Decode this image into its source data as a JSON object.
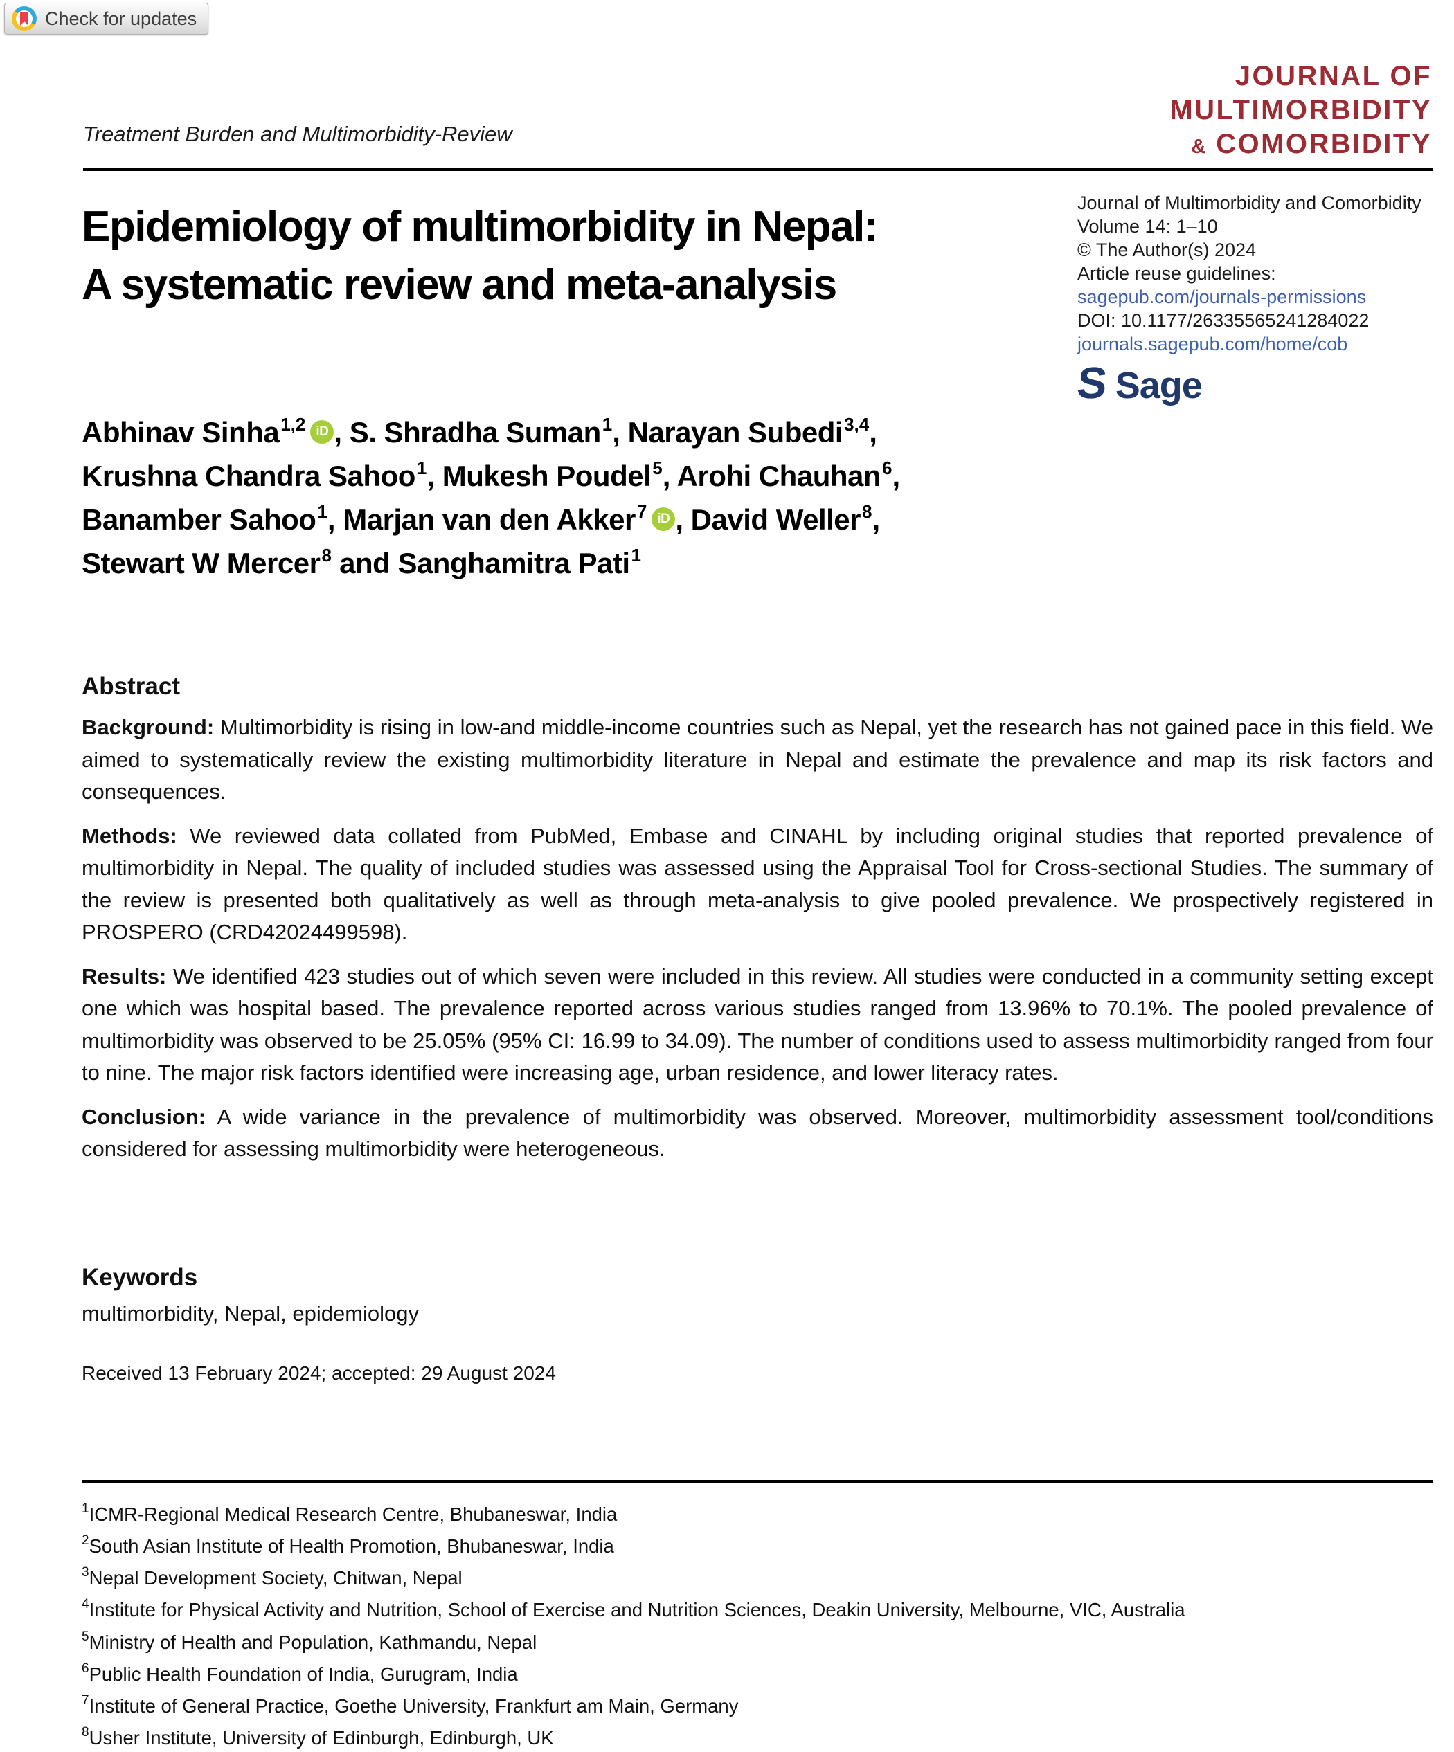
{
  "badge": {
    "label": "Check for updates"
  },
  "header": {
    "running_head": "Treatment Burden and Multimorbidity-Review",
    "logo": {
      "line1": "JOURNAL OF",
      "line2": "MULTIMORBIDITY",
      "amp": "&",
      "line3": "COMORBIDITY"
    }
  },
  "title": {
    "line1": "Epidemiology of multimorbidity in Nepal:",
    "line2": "A systematic review and meta-analysis"
  },
  "meta": {
    "journal": "Journal of Multimorbidity and Comorbidity",
    "volume": "Volume 14: 1–10",
    "copyright": "© The Author(s) 2024",
    "reuse": "Article reuse guidelines:",
    "permissions_link": "sagepub.com/journals-permissions",
    "doi": "DOI: 10.1177/26335565241284022",
    "home_link": "journals.sagepub.com/home/cob",
    "sage_s": "S",
    "publisher": "Sage"
  },
  "authors": {
    "orcid_label": "iD",
    "lines": [
      [
        {
          "name": "Abhinav Sinha",
          "sup": "1,2",
          "orcid": true,
          "sep": ", "
        },
        {
          "name": "S. Shradha Suman",
          "sup": "1",
          "sep": ", "
        },
        {
          "name": "Narayan Subedi",
          "sup": "3,4",
          "sep": ","
        }
      ],
      [
        {
          "name": "Krushna Chandra Sahoo",
          "sup": "1",
          "sep": ", "
        },
        {
          "name": "Mukesh Poudel",
          "sup": "5",
          "sep": ", "
        },
        {
          "name": "Arohi Chauhan",
          "sup": "6",
          "sep": ","
        }
      ],
      [
        {
          "name": "Banamber Sahoo",
          "sup": "1",
          "sep": ", "
        },
        {
          "name": "Marjan van den Akker",
          "sup": "7",
          "orcid": true,
          "sep": ", "
        },
        {
          "name": "David Weller",
          "sup": "8",
          "sep": ","
        }
      ],
      [
        {
          "name": "Stewart W Mercer",
          "sup": "8",
          "sep": " and "
        },
        {
          "name": "Sanghamitra Pati",
          "sup": "1",
          "sep": ""
        }
      ]
    ]
  },
  "abstract": {
    "heading": "Abstract",
    "paragraphs": [
      {
        "label": "Background:",
        "text": "Multimorbidity is rising in low-and middle-income countries such as Nepal, yet the research has not gained pace in this field. We aimed to systematically review the existing multimorbidity literature in Nepal and estimate the prevalence and map its risk factors and consequences."
      },
      {
        "label": "Methods:",
        "text": "We reviewed data collated from PubMed, Embase and CINAHL by including original studies that reported prevalence of multimorbidity in Nepal. The quality of included studies was assessed using the Appraisal Tool for Cross-sectional Studies. The summary of the review is presented both qualitatively as well as through meta-analysis to give pooled prevalence. We prospectively registered in PROSPERO (CRD42024499598)."
      },
      {
        "label": "Results:",
        "text": "We identified 423 studies out of which seven were included in this review. All studies were conducted in a community setting except one which was hospital based. The prevalence reported across various studies ranged from 13.96% to 70.1%. The pooled prevalence of multimorbidity was observed to be 25.05% (95% CI: 16.99 to 34.09). The number of conditions used to assess multimorbidity ranged from four to nine. The major risk factors identified were increasing age, urban residence, and lower literacy rates."
      },
      {
        "label": "Conclusion:",
        "text": "A wide variance in the prevalence of multimorbidity was observed. Moreover, multimorbidity assessment tool/conditions considered for assessing multimorbidity were heterogeneous."
      }
    ]
  },
  "keywords": {
    "heading": "Keywords",
    "text": "multimorbidity, Nepal, epidemiology"
  },
  "dates": {
    "received_accepted": "Received 13 February 2024; accepted: 29 August 2024"
  },
  "footnotes": [
    {
      "num": "1",
      "text": "ICMR-Regional Medical Research Centre, Bhubaneswar, India"
    },
    {
      "num": "2",
      "text": "South Asian Institute of Health Promotion, Bhubaneswar, India"
    },
    {
      "num": "3",
      "text": "Nepal Development Society, Chitwan, Nepal"
    },
    {
      "num": "4",
      "text": "Institute for Physical Activity and Nutrition, School of Exercise and Nutrition Sciences, Deakin University, Melbourne, VIC, Australia"
    },
    {
      "num": "5",
      "text": "Ministry of Health and Population, Kathmandu, Nepal"
    },
    {
      "num": "6",
      "text": "Public Health Foundation of India, Gurugram, India"
    },
    {
      "num": "7",
      "text": "Institute of General Practice, Goethe University, Frankfurt am Main, Germany"
    },
    {
      "num": "8",
      "text": "Usher Institute, University of Edinburgh, Edinburgh, UK"
    }
  ],
  "colors": {
    "logo_red": "#9c2b33",
    "link_blue": "#3d5fae",
    "sage_navy": "#21386b",
    "orcid_green": "#a6ce39",
    "crossmark_blue": "#2fa8dd",
    "crossmark_yellow": "#f5c224",
    "crossmark_red": "#e8414b"
  }
}
